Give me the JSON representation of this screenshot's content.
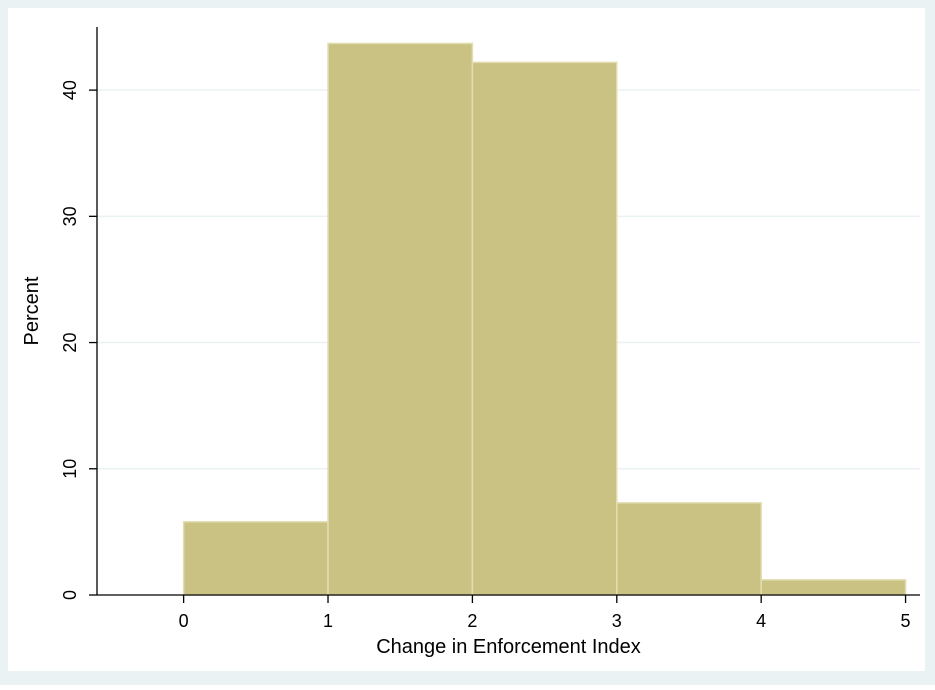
{
  "colors": {
    "outer_background": "#eaf2f3",
    "plot_background": "#ffffff",
    "bar_fill": "#c9c283",
    "bar_stroke": "#e3ddb2",
    "grid": "#eaf2f3",
    "axis": "#000000"
  },
  "chart_data": {
    "type": "bar",
    "title": "",
    "xlabel": "Change in Enforcement Index",
    "ylabel": "Percent",
    "bins": [
      {
        "start": 0,
        "end": 1,
        "value": 5.8
      },
      {
        "start": 1,
        "end": 2,
        "value": 43.7
      },
      {
        "start": 2,
        "end": 3,
        "value": 42.2
      },
      {
        "start": 3,
        "end": 4,
        "value": 7.3
      },
      {
        "start": 4,
        "end": 5,
        "value": 1.2
      }
    ],
    "xlim": [
      -0.6,
      5.1
    ],
    "ylim": [
      0,
      45
    ],
    "xticks": [
      0,
      1,
      2,
      3,
      4,
      5
    ],
    "yticks": [
      0,
      10,
      20,
      30,
      40
    ],
    "grid": true,
    "legend": "none"
  }
}
